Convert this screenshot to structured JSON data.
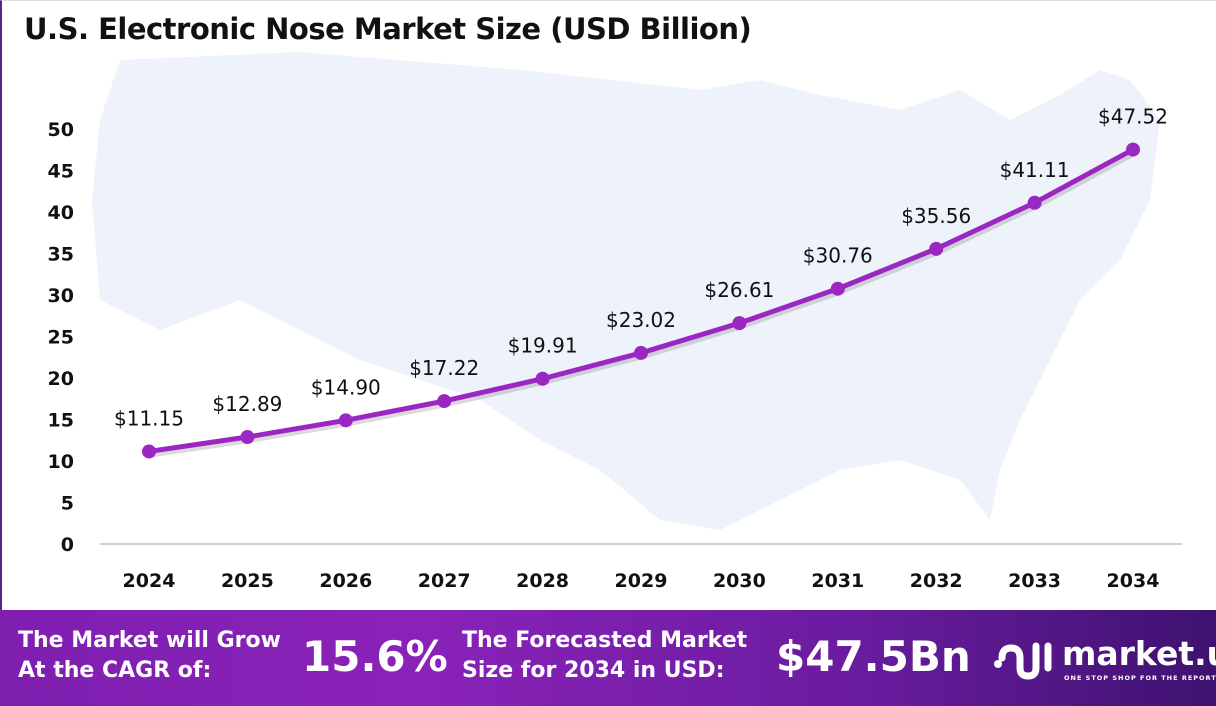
{
  "chart_data": {
    "type": "line",
    "title": "U.S. Electronic Nose Market Size (USD Billion)",
    "categories": [
      "2024",
      "2025",
      "2026",
      "2027",
      "2028",
      "2029",
      "2030",
      "2031",
      "2032",
      "2033",
      "2034"
    ],
    "values": [
      11.15,
      12.89,
      14.9,
      17.22,
      19.91,
      23.02,
      26.61,
      30.76,
      35.56,
      41.11,
      47.52
    ],
    "data_labels": [
      "$11.15",
      "$12.89",
      "$14.90",
      "$17.22",
      "$19.91",
      "$23.02",
      "$26.61",
      "$30.76",
      "$35.56",
      "$41.11",
      "$47.52"
    ],
    "yticks": [
      "0",
      "5",
      "10",
      "15",
      "20",
      "25",
      "30",
      "35",
      "40",
      "45",
      "50"
    ],
    "ylim": [
      0,
      50
    ],
    "xlabel": "",
    "ylabel": "",
    "grid": false,
    "line_color": "#9b27c2"
  },
  "footer": {
    "cagr_label": [
      "The Market will Grow",
      "At the CAGR of:"
    ],
    "cagr_value": "15.6%",
    "forecast_label": [
      "The Forecasted Market",
      "Size for 2034 in USD:"
    ],
    "forecast_value": "$47.5Bn",
    "logo_text": "market.us",
    "logo_tagline": "ONE STOP SHOP FOR THE REPORTS"
  }
}
